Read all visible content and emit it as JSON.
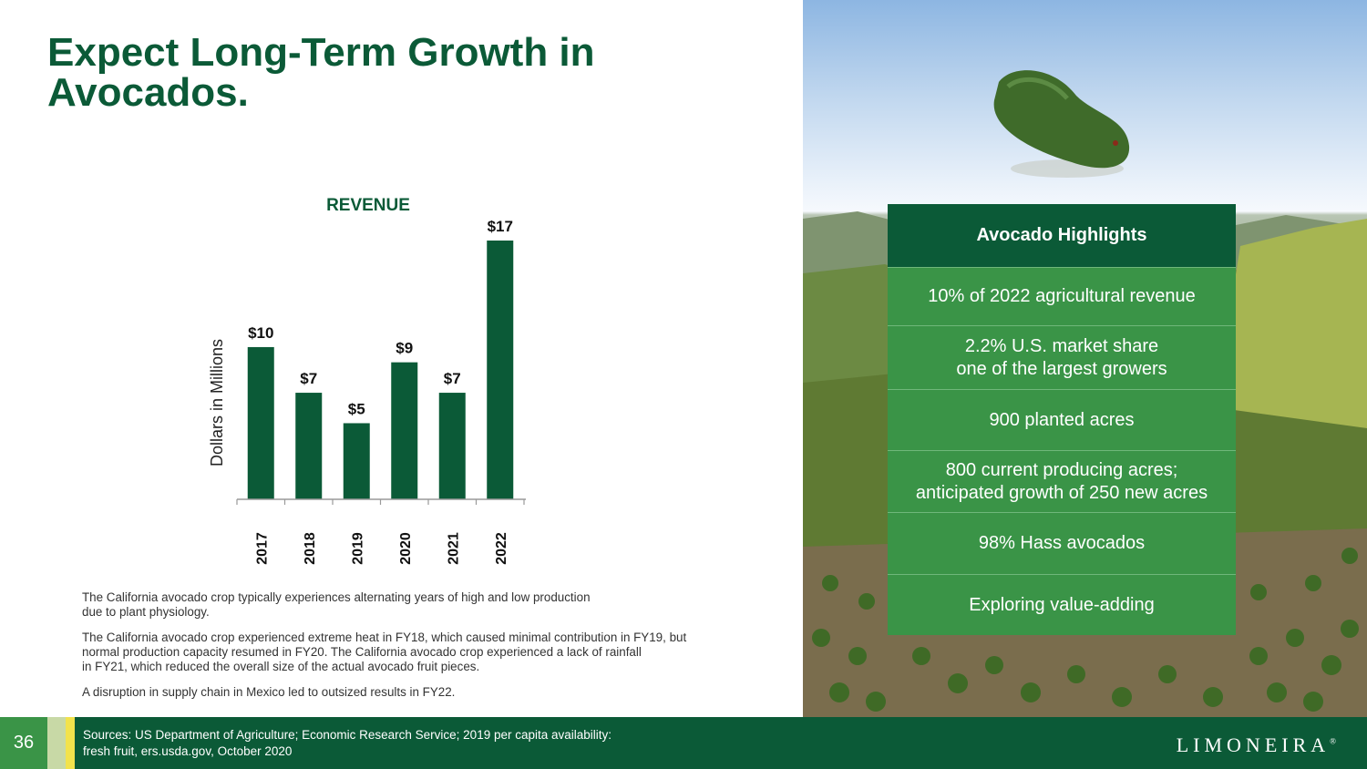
{
  "slide": {
    "title_line1": "Expect Long-Term Growth in",
    "title_line2": "Avocados.",
    "page_number": "36"
  },
  "chart_data": {
    "type": "bar",
    "title": "REVENUE",
    "ylabel": "Dollars in Millions",
    "xlabel": "",
    "categories": [
      "2017",
      "2018",
      "2019",
      "2020",
      "2021",
      "2022"
    ],
    "values": [
      10,
      7,
      5,
      9,
      7,
      17
    ],
    "data_labels": [
      "$10",
      "$7",
      "$5",
      "$9",
      "$7",
      "$17"
    ],
    "ylim": [
      0,
      17
    ],
    "grid": false,
    "bar_color": "#0b5a37"
  },
  "highlights": {
    "title": "Avocado Highlights",
    "items": [
      {
        "line1": "10% of 2022 agricultural revenue",
        "line2": ""
      },
      {
        "line1": "2.2% U.S. market share",
        "line2": "one of the largest growers"
      },
      {
        "line1": "900 planted acres",
        "line2": ""
      },
      {
        "line1": "800 current producing acres;",
        "line2": "anticipated growth of 250 new acres"
      },
      {
        "line1": "98% Hass avocados",
        "line2": ""
      },
      {
        "line1": "Exploring value-adding",
        "line2": ""
      }
    ]
  },
  "notes": [
    "The California avocado crop typically experiences alternating years of high and low production\ndue to plant physiology.",
    "The California avocado crop experienced extreme heat in FY18, which caused minimal contribution in FY19, but\nnormal production capacity resumed in FY20. The California avocado crop experienced a lack of rainfall\nin FY21, which reduced the overall size of the actual avocado fruit pieces.",
    "A disruption in supply chain in Mexico led to outsized results in FY22."
  ],
  "footer": {
    "sources": "Sources: US Department of Agriculture; Economic Research Service; 2019 per capita availability:\nfresh fruit, ers.usda.gov, October 2020",
    "logo_text": "LIMONEIRA",
    "logo_mark": "®"
  },
  "colors": {
    "dark_green": "#0b5a37",
    "mid_green": "#3a9447",
    "light_stripe": "#c8d9a6",
    "yellow_stripe": "#f2e24c"
  }
}
